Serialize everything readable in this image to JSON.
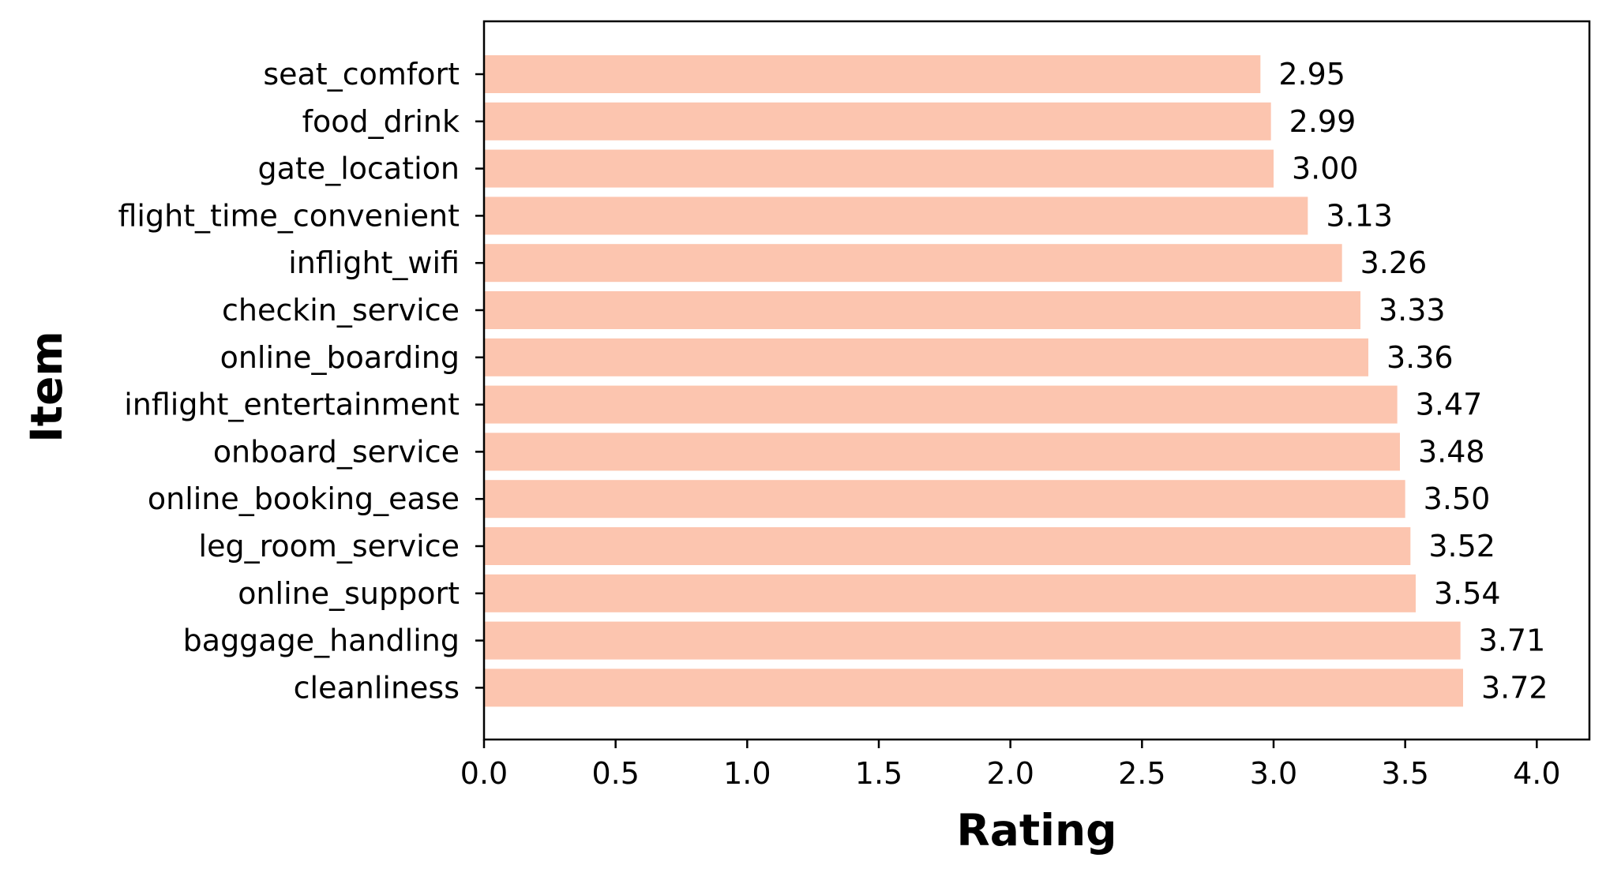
{
  "chart_data": {
    "type": "bar",
    "orientation": "horizontal",
    "xlabel": "Rating",
    "ylabel": "Item",
    "xlim": [
      0,
      4.2
    ],
    "x_ticks": [
      "0.0",
      "0.5",
      "1.0",
      "1.5",
      "2.0",
      "2.5",
      "3.0",
      "3.5",
      "4.0"
    ],
    "bar_color": "#fcc5af",
    "grid": false,
    "legend": "none",
    "categories": [
      "seat_comfort",
      "food_drink",
      "gate_location",
      "flight_time_convenient",
      "inflight_wifi",
      "checkin_service",
      "online_boarding",
      "inflight_entertainment",
      "onboard_service",
      "online_booking_ease",
      "leg_room_service",
      "online_support",
      "baggage_handling",
      "cleanliness"
    ],
    "values": [
      2.95,
      2.99,
      3.0,
      3.13,
      3.26,
      3.33,
      3.36,
      3.47,
      3.48,
      3.5,
      3.52,
      3.54,
      3.71,
      3.72
    ],
    "value_labels": [
      "2.95",
      "2.99",
      "3.00",
      "3.13",
      "3.26",
      "3.33",
      "3.36",
      "3.47",
      "3.48",
      "3.50",
      "3.52",
      "3.54",
      "3.71",
      "3.72"
    ]
  }
}
